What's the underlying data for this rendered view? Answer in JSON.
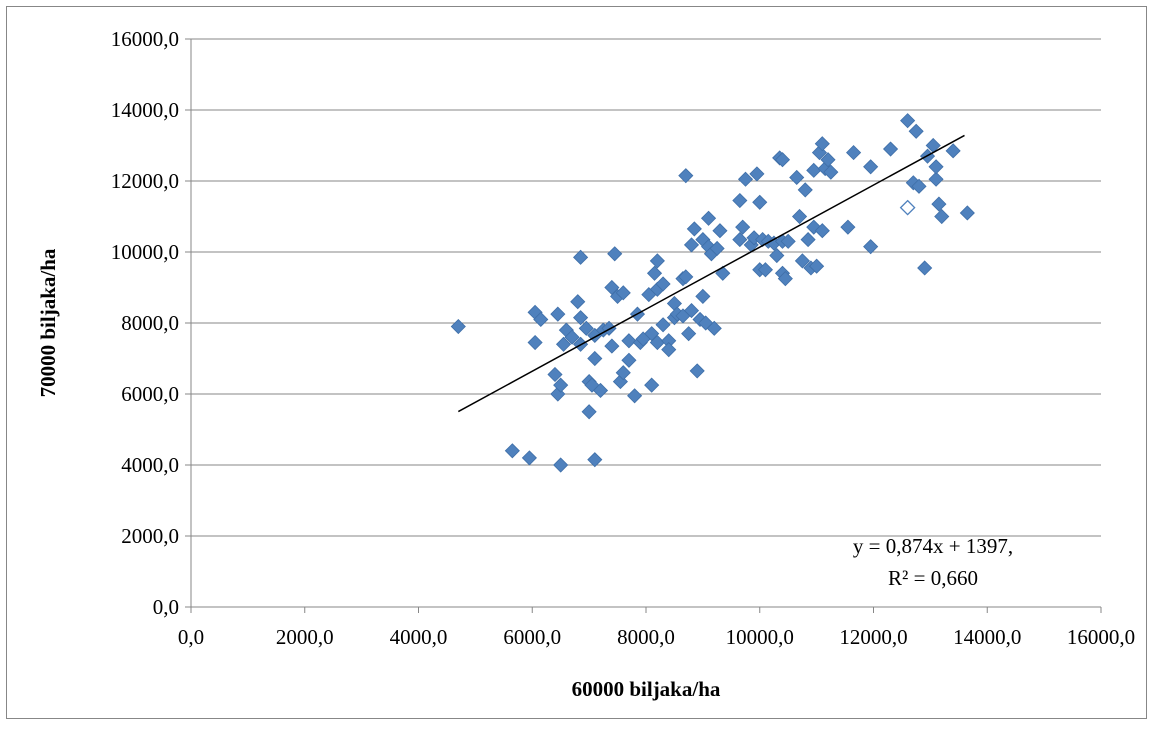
{
  "chart_data": {
    "type": "scatter",
    "xlabel": "60000 biljaka/ha",
    "ylabel": "70000 biljaka/ha",
    "xlim": [
      0,
      16000
    ],
    "ylim": [
      0,
      16000
    ],
    "x_ticks": [
      "0,0",
      "2000,0",
      "4000,0",
      "6000,0",
      "8000,0",
      "10000,0",
      "12000,0",
      "14000,0",
      "16000,0"
    ],
    "y_ticks": [
      "0,0",
      "2000,0",
      "4000,0",
      "6000,0",
      "8000,0",
      "10000,0",
      "12000,0",
      "14000,0",
      "16000,0"
    ],
    "grid": "horizontal",
    "marker_color": "#4F81BD",
    "trendline": {
      "slope": 0.874,
      "intercept": 1397,
      "x_range": [
        4700,
        13600
      ],
      "color": "#000000"
    },
    "annotation": {
      "line1": "y = 0,874x + 1397,",
      "line2": "R² = 0,660"
    },
    "series": [
      {
        "points": [
          [
            4700,
            7900
          ],
          [
            5650,
            4400
          ],
          [
            5950,
            4200
          ],
          [
            6500,
            4000
          ],
          [
            7100,
            4150
          ],
          [
            6050,
            8300
          ],
          [
            6050,
            7450
          ],
          [
            6150,
            8100
          ],
          [
            6400,
            6550
          ],
          [
            6450,
            6000
          ],
          [
            6500,
            6250
          ],
          [
            6450,
            8250
          ],
          [
            6550,
            7400
          ],
          [
            6600,
            7800
          ],
          [
            6700,
            7600
          ],
          [
            6800,
            8600
          ],
          [
            6850,
            8150
          ],
          [
            6850,
            9850
          ],
          [
            6850,
            7400
          ],
          [
            6950,
            7850
          ],
          [
            7000,
            6350
          ],
          [
            7000,
            5500
          ],
          [
            7050,
            6250
          ],
          [
            7100,
            7650
          ],
          [
            7100,
            7000
          ],
          [
            7200,
            6100
          ],
          [
            7250,
            7800
          ],
          [
            7350,
            7850
          ],
          [
            7400,
            9000
          ],
          [
            7400,
            7350
          ],
          [
            7450,
            9950
          ],
          [
            7500,
            8750
          ],
          [
            7550,
            6350
          ],
          [
            7600,
            8850
          ],
          [
            7600,
            6600
          ],
          [
            7700,
            6950
          ],
          [
            7700,
            7500
          ],
          [
            7800,
            5950
          ],
          [
            7850,
            8250
          ],
          [
            7900,
            7450
          ],
          [
            7950,
            7550
          ],
          [
            8050,
            8800
          ],
          [
            8100,
            6250
          ],
          [
            8100,
            7700
          ],
          [
            8150,
            9400
          ],
          [
            8200,
            9750
          ],
          [
            8200,
            8950
          ],
          [
            8200,
            7450
          ],
          [
            8300,
            9100
          ],
          [
            8300,
            7950
          ],
          [
            8400,
            7500
          ],
          [
            8400,
            7250
          ],
          [
            8500,
            8550
          ],
          [
            8500,
            8150
          ],
          [
            8550,
            8250
          ],
          [
            8650,
            9250
          ],
          [
            8650,
            8200
          ],
          [
            8700,
            12150
          ],
          [
            8700,
            9300
          ],
          [
            8750,
            7700
          ],
          [
            8800,
            10200
          ],
          [
            8800,
            8350
          ],
          [
            8850,
            10650
          ],
          [
            8900,
            6650
          ],
          [
            8950,
            8100
          ],
          [
            9000,
            10350
          ],
          [
            9000,
            8750
          ],
          [
            9050,
            8000
          ],
          [
            9100,
            10950
          ],
          [
            9100,
            10150
          ],
          [
            9150,
            9950
          ],
          [
            9200,
            7850
          ],
          [
            9250,
            10100
          ],
          [
            9300,
            10600
          ],
          [
            9350,
            9400
          ],
          [
            9650,
            11450
          ],
          [
            9650,
            10350
          ],
          [
            9700,
            10700
          ],
          [
            9750,
            12050
          ],
          [
            9850,
            10200
          ],
          [
            9900,
            10400
          ],
          [
            9950,
            12200
          ],
          [
            10000,
            11400
          ],
          [
            10000,
            9500
          ],
          [
            10050,
            10350
          ],
          [
            10100,
            9500
          ],
          [
            10150,
            10300
          ],
          [
            10250,
            10250
          ],
          [
            10300,
            9900
          ],
          [
            10350,
            12650
          ],
          [
            10400,
            12600
          ],
          [
            10400,
            10300
          ],
          [
            10400,
            9400
          ],
          [
            10450,
            9250
          ],
          [
            10500,
            10300
          ],
          [
            10650,
            12100
          ],
          [
            10700,
            11000
          ],
          [
            10750,
            9750
          ],
          [
            10800,
            11750
          ],
          [
            10850,
            10350
          ],
          [
            10900,
            9550
          ],
          [
            10950,
            10700
          ],
          [
            10950,
            12300
          ],
          [
            11000,
            9600
          ],
          [
            11050,
            12800
          ],
          [
            11100,
            13050
          ],
          [
            11100,
            10600
          ],
          [
            11150,
            12350
          ],
          [
            11200,
            12600
          ],
          [
            11250,
            12250
          ],
          [
            11550,
            10700
          ],
          [
            11650,
            12800
          ],
          [
            11950,
            12400
          ],
          [
            11950,
            10150
          ],
          [
            12300,
            12900
          ],
          [
            12600,
            13700
          ],
          [
            12700,
            11950
          ],
          [
            12750,
            13400
          ],
          [
            12800,
            11850
          ],
          [
            12900,
            9550
          ],
          [
            12950,
            12700
          ],
          [
            13050,
            13000
          ],
          [
            13100,
            12050
          ],
          [
            13100,
            12400
          ],
          [
            13150,
            11350
          ],
          [
            13200,
            11000
          ],
          [
            13400,
            12850
          ],
          [
            13650,
            11100
          ]
        ]
      }
    ],
    "highlighted_point": {
      "x": 12600,
      "y": 11250
    }
  }
}
